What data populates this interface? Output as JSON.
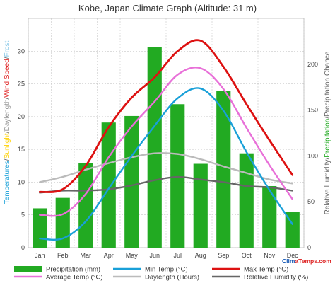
{
  "chart_data": {
    "type": "bar+line",
    "title": "Kobe, Japan Climate Graph (Altitude: 31  m)",
    "categories": [
      "Jan",
      "Feb",
      "Mar",
      "Apr",
      "May",
      "Jun",
      "Jul",
      "Aug",
      "Sep",
      "Oct",
      "Nov",
      "Dec"
    ],
    "left_axis": {
      "ylim": [
        0,
        35
      ],
      "ticks": [
        0,
        5,
        10,
        15,
        20,
        25,
        30
      ],
      "label_parts": [
        {
          "text": "Temperatures",
          "color": "#19a0d8"
        },
        {
          "text": "/",
          "color": "#555555"
        },
        {
          "text": "Sunlight",
          "color": "#ffd200"
        },
        {
          "text": "/",
          "color": "#555555"
        },
        {
          "text": "Daylength",
          "color": "#999999"
        },
        {
          "text": "/",
          "color": "#555555"
        },
        {
          "text": "Wind Speed",
          "color": "#e02020"
        },
        {
          "text": "/",
          "color": "#555555"
        },
        {
          "text": "Frost",
          "color": "#88c8e8"
        }
      ]
    },
    "right_axis": {
      "ylim": [
        0,
        250
      ],
      "ticks": [
        0,
        50,
        100,
        150,
        200
      ],
      "label_parts": [
        {
          "text": "Relative Humidity",
          "color": "#666666"
        },
        {
          "text": "/",
          "color": "#555555"
        },
        {
          "text": "Precipitation",
          "color": "#22aa22"
        },
        {
          "text": "/",
          "color": "#555555"
        },
        {
          "text": "Precipitation Chance",
          "color": "#666666"
        }
      ]
    },
    "precipitation_bars_left_scale": [
      6.0,
      7.6,
      12.9,
      19.1,
      20.1,
      30.6,
      21.9,
      12.8,
      23.9,
      14.4,
      9.4,
      5.4
    ],
    "series": [
      {
        "name": "Precipitation (mm)",
        "kind": "bar",
        "color": "#22aa22",
        "values": [
          42,
          53,
          90,
          134,
          141,
          214,
          153,
          90,
          167,
          101,
          66,
          38
        ]
      },
      {
        "name": "Min Temp (°C)",
        "kind": "line",
        "color": "#19a0d8",
        "values": [
          1.4,
          1.4,
          4.0,
          9.0,
          14.0,
          18.6,
          22.8,
          24.3,
          20.9,
          14.6,
          8.8,
          3.6
        ]
      },
      {
        "name": "Max Temp (°C)",
        "kind": "line",
        "color": "#dd1111",
        "values": [
          8.5,
          8.9,
          12.5,
          18.4,
          22.9,
          26.0,
          30.0,
          31.6,
          27.6,
          21.9,
          16.4,
          11.1
        ]
      },
      {
        "name": "Average Temp (°C)",
        "kind": "line",
        "color": "#e870d8",
        "values": [
          5.0,
          5.1,
          8.2,
          13.8,
          18.5,
          22.3,
          26.4,
          27.4,
          24.2,
          18.3,
          12.6,
          7.4
        ]
      },
      {
        "name": "Daylength (Hours)",
        "kind": "line",
        "color": "#bbbbbb",
        "values": [
          10.0,
          10.8,
          11.9,
          12.9,
          13.8,
          14.4,
          14.3,
          13.5,
          12.4,
          11.4,
          10.4,
          9.8
        ]
      },
      {
        "name": "Relative Humidity (%)",
        "kind": "line",
        "color": "#666666",
        "values": [
          8.4,
          8.7,
          8.7,
          8.9,
          9.5,
          10.3,
          10.8,
          10.4,
          10.0,
          9.4,
          9.2,
          8.7
        ]
      }
    ],
    "grid": true,
    "legend_position": "bottom",
    "watermark": "ClimaTemps.com"
  }
}
